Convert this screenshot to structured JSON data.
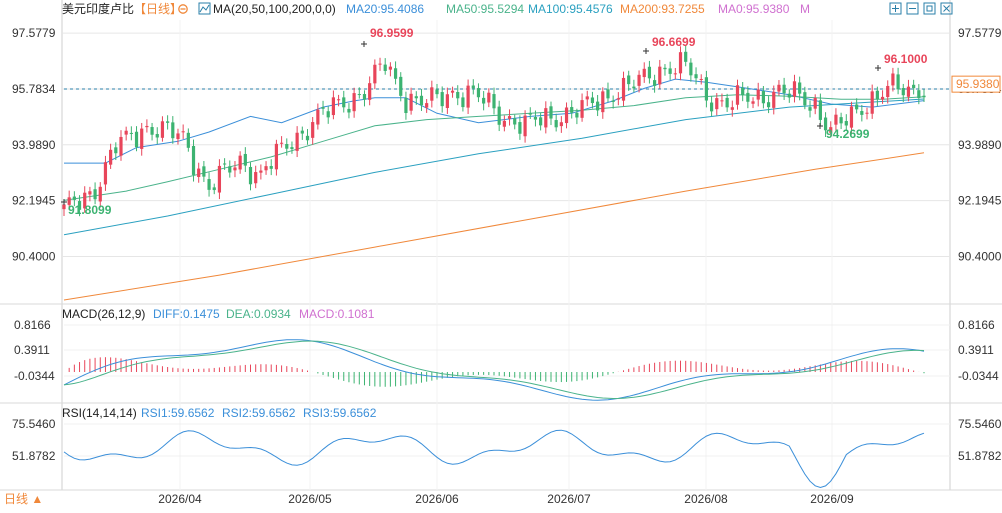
{
  "header": {
    "symbol": "美元印度卢比",
    "period": "【日线】",
    "ma_label": "MA(20,50,100,200,0,0)",
    "ma_values": [
      {
        "text": "MA20:95.4086",
        "color": "#3b8fd9"
      },
      {
        "text": "MA50:95.5294",
        "color": "#4ab38b"
      },
      {
        "text": "MA100:95.4576",
        "color": "#2aa0c0"
      },
      {
        "text": "MA200:93.7255",
        "color": "#f0883a"
      },
      {
        "text": "MA0:95.9380",
        "color": "#d070d0"
      },
      {
        "text": "M",
        "color": "#d070d0"
      }
    ],
    "toolbar_icons": [
      "zoom-in-icon",
      "zoom-out-icon",
      "fullscreen-icon",
      "close-icon"
    ]
  },
  "colors": {
    "up": "#e8455a",
    "down": "#3cb371",
    "ma20": "#3b8fd9",
    "ma50": "#4ab38b",
    "ma100": "#2aa0c0",
    "ma200": "#f0883a",
    "last_price": "#f0883a",
    "dashed": "#2a7fa8",
    "axis_text": "#333333",
    "grid": "#e6e6e6"
  },
  "chart_data": [
    {
      "type": "candlestick",
      "title": "美元印度卢比 日线",
      "y_ticks": [
        "97.5779",
        "95.7834",
        "93.9890",
        "92.1945",
        "90.4000"
      ],
      "ylim": [
        89.0,
        98.0
      ],
      "x_ticks": [
        "2026/04",
        "2026/05",
        "2026/06",
        "2026/07",
        "2026/08",
        "2026/09"
      ],
      "last_price": "95.9380",
      "reference_line": 95.7834,
      "annotations": [
        {
          "text": "96.9599",
          "kind": "high"
        },
        {
          "text": "96.6699",
          "kind": "high"
        },
        {
          "text": "96.1000",
          "kind": "high"
        },
        {
          "text": "91.8099",
          "kind": "low"
        },
        {
          "text": "94.2699",
          "kind": "low"
        }
      ],
      "anchors": [
        {
          "i": 0,
          "v": 91.81
        },
        {
          "i": 6,
          "v": 92.6
        },
        {
          "i": 10,
          "v": 93.9
        },
        {
          "i": 16,
          "v": 94.6
        },
        {
          "i": 23,
          "v": 94.2
        },
        {
          "i": 28,
          "v": 92.6
        },
        {
          "i": 34,
          "v": 93.5
        },
        {
          "i": 38,
          "v": 93.0
        },
        {
          "i": 43,
          "v": 94.0
        },
        {
          "i": 48,
          "v": 94.7
        },
        {
          "i": 53,
          "v": 95.3
        },
        {
          "i": 58,
          "v": 95.7
        },
        {
          "i": 62,
          "v": 96.6
        },
        {
          "i": 66,
          "v": 95.5
        },
        {
          "i": 70,
          "v": 95.3
        },
        {
          "i": 75,
          "v": 95.7
        },
        {
          "i": 79,
          "v": 95.6
        },
        {
          "i": 84,
          "v": 95.0
        },
        {
          "i": 89,
          "v": 94.6
        },
        {
          "i": 94,
          "v": 94.9
        },
        {
          "i": 100,
          "v": 95.1
        },
        {
          "i": 106,
          "v": 95.7
        },
        {
          "i": 110,
          "v": 95.9
        },
        {
          "i": 116,
          "v": 96.5
        },
        {
          "i": 120,
          "v": 96.5
        },
        {
          "i": 124,
          "v": 95.6
        },
        {
          "i": 128,
          "v": 95.3
        },
        {
          "i": 133,
          "v": 95.5
        },
        {
          "i": 138,
          "v": 95.7
        },
        {
          "i": 142,
          "v": 95.5
        },
        {
          "i": 145,
          "v": 95.3
        },
        {
          "i": 148,
          "v": 94.5
        },
        {
          "i": 151,
          "v": 94.7
        },
        {
          "i": 155,
          "v": 95.4
        },
        {
          "i": 159,
          "v": 95.8
        },
        {
          "i": 163,
          "v": 95.7
        },
        {
          "i": 166,
          "v": 95.9
        }
      ],
      "ma_lines": [
        {
          "name": "MA20",
          "color": "#3b8fd9",
          "points": [
            [
              0,
              93.4
            ],
            [
              8,
              93.4
            ],
            [
              14,
              93.9
            ],
            [
              22,
              94.1
            ],
            [
              28,
              94.4
            ],
            [
              36,
              94.9
            ],
            [
              42,
              94.7
            ],
            [
              50,
              95.2
            ],
            [
              56,
              95.4
            ],
            [
              60,
              95.5
            ],
            [
              66,
              95.5
            ],
            [
              72,
              95.0
            ],
            [
              80,
              94.7
            ],
            [
              90,
              94.9
            ],
            [
              98,
              95.0
            ],
            [
              106,
              95.4
            ],
            [
              112,
              95.8
            ],
            [
              118,
              96.1
            ],
            [
              124,
              96.0
            ],
            [
              132,
              95.8
            ],
            [
              140,
              95.6
            ],
            [
              148,
              95.3
            ],
            [
              156,
              95.2
            ],
            [
              166,
              95.41
            ]
          ]
        },
        {
          "name": "MA50",
          "color": "#4ab38b",
          "points": [
            [
              0,
              92.2
            ],
            [
              12,
              92.5
            ],
            [
              20,
              92.8
            ],
            [
              30,
              93.2
            ],
            [
              40,
              93.6
            ],
            [
              50,
              94.1
            ],
            [
              60,
              94.6
            ],
            [
              70,
              94.8
            ],
            [
              80,
              94.9
            ],
            [
              90,
              95.0
            ],
            [
              100,
              95.1
            ],
            [
              110,
              95.25
            ],
            [
              120,
              95.5
            ],
            [
              130,
              95.6
            ],
            [
              140,
              95.55
            ],
            [
              150,
              95.45
            ],
            [
              158,
              95.45
            ],
            [
              166,
              95.53
            ]
          ]
        },
        {
          "name": "MA100",
          "color": "#2aa0c0",
          "points": [
            [
              0,
              91.1
            ],
            [
              20,
              91.7
            ],
            [
              40,
              92.4
            ],
            [
              60,
              93.1
            ],
            [
              80,
              93.7
            ],
            [
              100,
              94.2
            ],
            [
              120,
              94.8
            ],
            [
              140,
              95.2
            ],
            [
              155,
              95.35
            ],
            [
              166,
              95.46
            ]
          ]
        },
        {
          "name": "MA200",
          "color": "#f0883a",
          "points": [
            [
              0,
              89.0
            ],
            [
              30,
              89.8
            ],
            [
              60,
              90.7
            ],
            [
              90,
              91.6
            ],
            [
              120,
              92.5
            ],
            [
              145,
              93.2
            ],
            [
              166,
              93.73
            ]
          ]
        }
      ]
    },
    {
      "type": "bar-line",
      "title": "MACD(26,12,9)",
      "series": [
        {
          "name": "DIFF:0.1475",
          "color": "#3b8fd9"
        },
        {
          "name": "DEA:0.0934",
          "color": "#4ab38b"
        },
        {
          "name": "MACD:0.1081",
          "color": "#d070d0"
        }
      ],
      "y_ticks": [
        "0.8166",
        "0.3911",
        "-0.0344"
      ]
    },
    {
      "type": "line",
      "title": "RSI(14,14,14)",
      "series": [
        {
          "name": "RSI1:59.6562",
          "color": "#3b8fd9"
        },
        {
          "name": "RSI2:59.6562",
          "color": "#3b8fd9"
        },
        {
          "name": "RSI3:59.6562",
          "color": "#3b8fd9"
        }
      ],
      "y_ticks": [
        "75.5460",
        "51.8782"
      ]
    }
  ],
  "footer": {
    "period_button": "日线 ▲"
  }
}
